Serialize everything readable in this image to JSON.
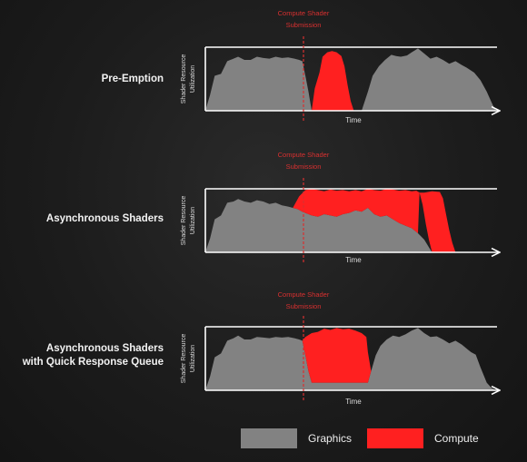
{
  "colors": {
    "graphics": "#828282",
    "compute": "#ff2020",
    "submission_line": "#d93030",
    "axis": "#ffffff",
    "annotation_text": "#d93030"
  },
  "panels": [
    {
      "title_lines": [
        "Pre-Emption"
      ],
      "annotation_lines": [
        "Compute Shader",
        "Submission"
      ],
      "y_axis_lines": [
        "Shader Resource",
        "Utilization"
      ],
      "x_axis_label": "Time",
      "graphics_regions": [
        [
          [
            0,
            0
          ],
          [
            3,
            25
          ],
          [
            6,
            55
          ],
          [
            10,
            58
          ],
          [
            14,
            78
          ],
          [
            18,
            82
          ],
          [
            21,
            85
          ],
          [
            25,
            80
          ],
          [
            29,
            80
          ],
          [
            33,
            85
          ],
          [
            37,
            83
          ],
          [
            41,
            82
          ],
          [
            45,
            85
          ],
          [
            49,
            83
          ],
          [
            53,
            84
          ],
          [
            57,
            82
          ],
          [
            60,
            80
          ],
          [
            62,
            78
          ],
          [
            64,
            55
          ],
          [
            66,
            30
          ],
          [
            68,
            0
          ]
        ],
        [
          [
            100,
            0
          ],
          [
            104,
            30
          ],
          [
            107,
            55
          ],
          [
            111,
            70
          ],
          [
            115,
            80
          ],
          [
            119,
            88
          ],
          [
            122,
            86
          ],
          [
            125,
            85
          ],
          [
            129,
            87
          ],
          [
            132,
            92
          ],
          [
            136,
            98
          ],
          [
            140,
            90
          ],
          [
            144,
            82
          ],
          [
            148,
            85
          ],
          [
            152,
            80
          ],
          [
            156,
            74
          ],
          [
            160,
            78
          ],
          [
            164,
            72
          ],
          [
            167,
            68
          ],
          [
            172,
            60
          ],
          [
            176,
            48
          ],
          [
            180,
            30
          ],
          [
            184,
            8
          ],
          [
            186,
            0
          ]
        ]
      ],
      "compute_regions": [
        [
          [
            68,
            0
          ],
          [
            70,
            35
          ],
          [
            73,
            60
          ],
          [
            75,
            85
          ],
          [
            78,
            92
          ],
          [
            81,
            94
          ],
          [
            84,
            92
          ],
          [
            87,
            86
          ],
          [
            89,
            70
          ],
          [
            91,
            40
          ],
          [
            93,
            15
          ],
          [
            95,
            0
          ]
        ]
      ]
    },
    {
      "title_lines": [
        "Asynchronous Shaders"
      ],
      "annotation_lines": [
        "Compute Shader",
        "Submission"
      ],
      "y_axis_lines": [
        "Shader Resource",
        "Utilization"
      ],
      "x_axis_label": "Time",
      "graphics_regions": [
        [
          [
            0,
            0
          ],
          [
            3,
            22
          ],
          [
            6,
            52
          ],
          [
            10,
            58
          ],
          [
            14,
            78
          ],
          [
            18,
            80
          ],
          [
            21,
            84
          ],
          [
            25,
            80
          ],
          [
            29,
            78
          ],
          [
            33,
            82
          ],
          [
            37,
            80
          ],
          [
            41,
            76
          ],
          [
            45,
            78
          ],
          [
            49,
            74
          ],
          [
            53,
            72
          ],
          [
            56,
            70
          ],
          [
            59,
            68
          ],
          [
            62,
            64
          ],
          [
            64,
            62
          ],
          [
            68,
            58
          ],
          [
            72,
            56
          ],
          [
            76,
            60
          ],
          [
            80,
            58
          ],
          [
            84,
            56
          ],
          [
            88,
            60
          ],
          [
            92,
            62
          ],
          [
            96,
            66
          ],
          [
            100,
            64
          ],
          [
            104,
            70
          ],
          [
            108,
            60
          ],
          [
            112,
            56
          ],
          [
            116,
            58
          ],
          [
            120,
            52
          ],
          [
            124,
            46
          ],
          [
            128,
            42
          ],
          [
            132,
            38
          ],
          [
            136,
            30
          ],
          [
            140,
            20
          ],
          [
            143,
            8
          ],
          [
            145,
            0
          ]
        ]
      ],
      "compute_regions": [
        [
          [
            56,
            70
          ],
          [
            60,
            88
          ],
          [
            64,
            98
          ],
          [
            68,
            100
          ],
          [
            72,
            98
          ],
          [
            76,
            96
          ],
          [
            80,
            99
          ],
          [
            84,
            97
          ],
          [
            88,
            98
          ],
          [
            92,
            96
          ],
          [
            96,
            98
          ],
          [
            100,
            96
          ],
          [
            104,
            100
          ],
          [
            108,
            98
          ],
          [
            112,
            97
          ],
          [
            116,
            100
          ],
          [
            120,
            99
          ],
          [
            124,
            97
          ],
          [
            128,
            98
          ],
          [
            132,
            96
          ],
          [
            135,
            97
          ],
          [
            137,
            94
          ],
          [
            139,
            75
          ],
          [
            141,
            45
          ],
          [
            143,
            20
          ],
          [
            145,
            0
          ],
          [
            160,
            0
          ],
          [
            158,
            15
          ],
          [
            156,
            35
          ],
          [
            154,
            60
          ],
          [
            152,
            85
          ],
          [
            150,
            95
          ],
          [
            145,
            96
          ],
          [
            140,
            94
          ],
          [
            137,
            94
          ],
          [
            136,
            30
          ],
          [
            132,
            38
          ],
          [
            128,
            42
          ],
          [
            124,
            46
          ],
          [
            120,
            52
          ],
          [
            116,
            58
          ],
          [
            112,
            56
          ],
          [
            108,
            60
          ],
          [
            104,
            70
          ],
          [
            100,
            64
          ],
          [
            96,
            66
          ],
          [
            92,
            62
          ],
          [
            88,
            60
          ],
          [
            84,
            56
          ],
          [
            80,
            58
          ],
          [
            76,
            60
          ],
          [
            72,
            56
          ],
          [
            68,
            58
          ],
          [
            64,
            62
          ],
          [
            62,
            64
          ],
          [
            59,
            68
          ]
        ]
      ]
    },
    {
      "title_lines": [
        "Asynchronous Shaders",
        "with Quick Response Queue"
      ],
      "annotation_lines": [
        "Compute Shader",
        "Submission"
      ],
      "y_axis_lines": [
        "Shader Resource",
        "Utilization"
      ],
      "x_axis_label": "Time",
      "graphics_regions": [
        [
          [
            0,
            0
          ],
          [
            3,
            22
          ],
          [
            6,
            52
          ],
          [
            10,
            58
          ],
          [
            14,
            78
          ],
          [
            18,
            82
          ],
          [
            21,
            86
          ],
          [
            25,
            80
          ],
          [
            29,
            80
          ],
          [
            33,
            84
          ],
          [
            37,
            83
          ],
          [
            41,
            82
          ],
          [
            45,
            84
          ],
          [
            49,
            83
          ],
          [
            53,
            84
          ],
          [
            57,
            82
          ],
          [
            60,
            80
          ],
          [
            62,
            78
          ],
          [
            64,
            55
          ],
          [
            66,
            30
          ],
          [
            68,
            12
          ],
          [
            104,
            12
          ],
          [
            106,
            30
          ],
          [
            109,
            55
          ],
          [
            112,
            70
          ],
          [
            116,
            80
          ],
          [
            120,
            86
          ],
          [
            124,
            84
          ],
          [
            128,
            88
          ],
          [
            132,
            94
          ],
          [
            136,
            98
          ],
          [
            140,
            90
          ],
          [
            144,
            84
          ],
          [
            148,
            85
          ],
          [
            152,
            80
          ],
          [
            156,
            74
          ],
          [
            160,
            78
          ],
          [
            164,
            72
          ],
          [
            168,
            64
          ],
          [
            170,
            60
          ],
          [
            173,
            56
          ],
          [
            176,
            36
          ],
          [
            180,
            12
          ],
          [
            183,
            4
          ],
          [
            186,
            0
          ]
        ]
      ],
      "compute_regions": [
        [
          [
            62,
            78
          ],
          [
            64,
            84
          ],
          [
            68,
            90
          ],
          [
            72,
            92
          ],
          [
            76,
            97
          ],
          [
            80,
            95
          ],
          [
            84,
            98
          ],
          [
            88,
            96
          ],
          [
            92,
            97
          ],
          [
            96,
            94
          ],
          [
            100,
            90
          ],
          [
            103,
            84
          ],
          [
            104,
            60
          ],
          [
            106,
            30
          ],
          [
            104,
            12
          ],
          [
            68,
            12
          ],
          [
            66,
            30
          ],
          [
            64,
            55
          ]
        ]
      ]
    }
  ],
  "legend": {
    "graphics_label": "Graphics",
    "compute_label": "Compute"
  }
}
